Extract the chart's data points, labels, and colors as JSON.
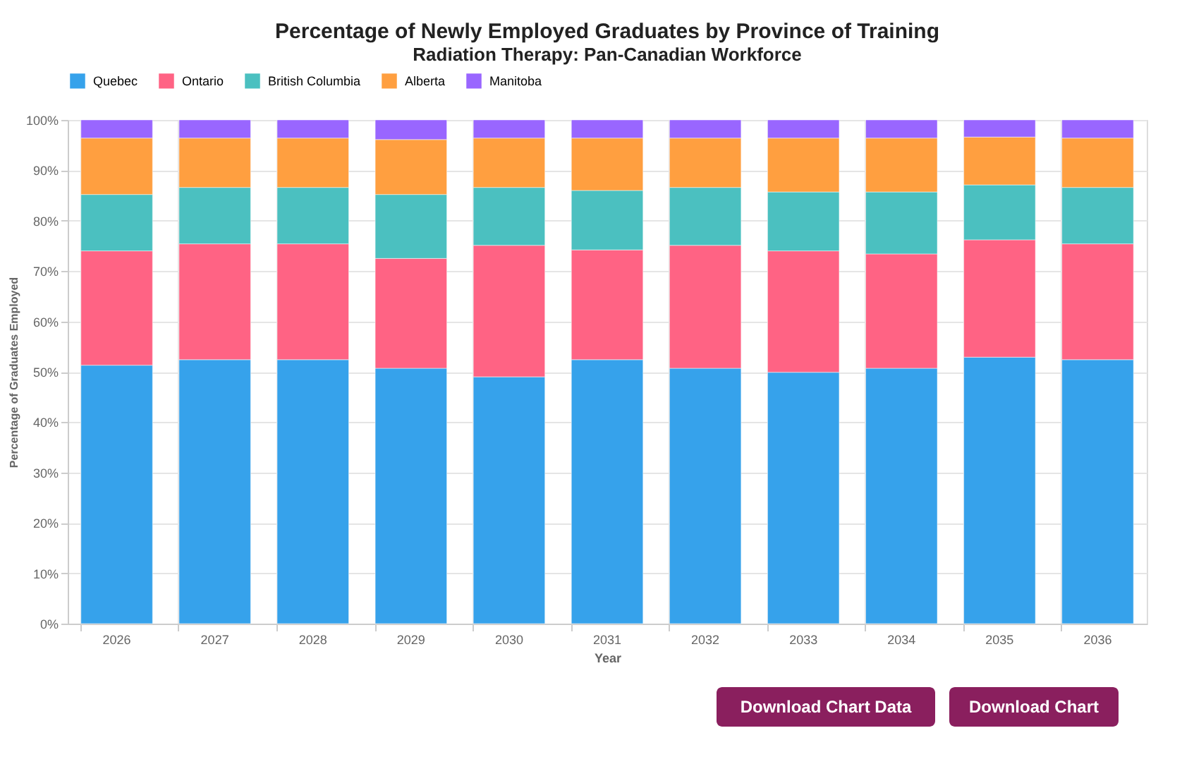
{
  "chart_data": {
    "type": "bar",
    "stacked": true,
    "title": "Percentage of Newly Employed Graduates by Province of Training",
    "subtitle": "Radiation Therapy: Pan-Canadian Workforce",
    "xlabel": "Year",
    "ylabel": "Percentage of Graduates Employed",
    "categories": [
      "2026",
      "2027",
      "2028",
      "2029",
      "2030",
      "2031",
      "2032",
      "2033",
      "2034",
      "2035",
      "2036"
    ],
    "series": [
      {
        "name": "Quebec",
        "color": "#36a2eb",
        "values": [
          51.3,
          52.4,
          52.4,
          50.7,
          49.0,
          52.4,
          50.7,
          49.9,
          50.7,
          52.9,
          52.4
        ]
      },
      {
        "name": "Ontario",
        "color": "#ff6384",
        "values": [
          22.7,
          23.0,
          23.0,
          21.8,
          26.1,
          21.8,
          24.4,
          24.1,
          22.7,
          23.3,
          23.0
        ]
      },
      {
        "name": "British Columbia",
        "color": "#4bc0c0",
        "values": [
          11.2,
          11.2,
          11.2,
          12.7,
          11.5,
          11.8,
          11.5,
          11.7,
          12.3,
          10.9,
          11.2
        ]
      },
      {
        "name": "Alberta",
        "color": "#ff9f40",
        "values": [
          11.2,
          9.8,
          9.8,
          10.9,
          9.8,
          10.4,
          9.8,
          10.7,
          10.7,
          9.5,
          9.8
        ]
      },
      {
        "name": "Manitoba",
        "color": "#9966ff",
        "values": [
          3.6,
          3.6,
          3.6,
          3.9,
          3.6,
          3.6,
          3.6,
          3.6,
          3.6,
          3.4,
          3.6
        ]
      }
    ],
    "ylim": [
      0,
      100
    ],
    "yticks": [
      {
        "value": 0,
        "label": "0%"
      },
      {
        "value": 10,
        "label": "10%"
      },
      {
        "value": 20,
        "label": "20%"
      },
      {
        "value": 30,
        "label": "30%"
      },
      {
        "value": 40,
        "label": "40%"
      },
      {
        "value": 50,
        "label": "50%"
      },
      {
        "value": 60,
        "label": "60%"
      },
      {
        "value": 70,
        "label": "70%"
      },
      {
        "value": 80,
        "label": "80%"
      },
      {
        "value": 90,
        "label": "90%"
      },
      {
        "value": 100,
        "label": "100%"
      }
    ],
    "grid": true,
    "legend": "top",
    "annotations": [
      "Download Chart Data",
      "Download Chart"
    ]
  }
}
